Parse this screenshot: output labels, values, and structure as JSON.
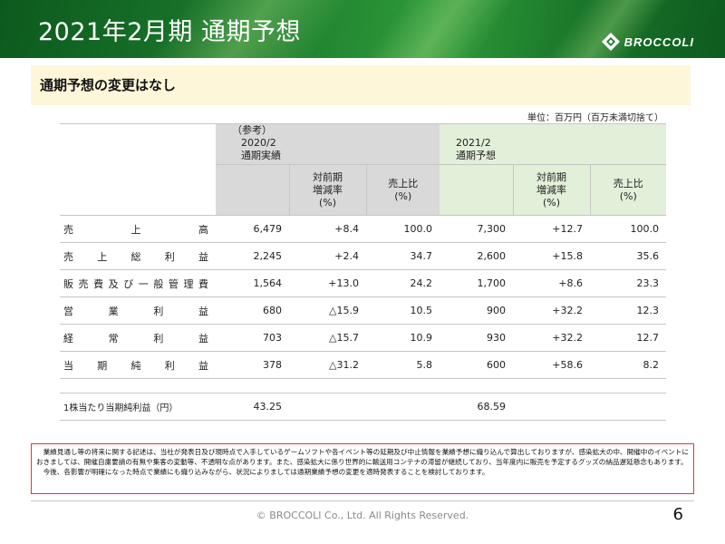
{
  "header": {
    "title": "2021年2月期 通期予想",
    "logo_text": "BROCCOLI",
    "accent": "#1b7a2c"
  },
  "notice": "通期予想の変更はなし",
  "unit_note": "単位：百万円（百万未満切捨て）",
  "table": {
    "group_prev": {
      "line1": "（参考）",
      "line2": "2020/2",
      "line3": "通期実績"
    },
    "group_curr": {
      "line1": "2021/2",
      "line2": "通期予想"
    },
    "sub_yoy": {
      "line1": "対前期",
      "line2": "増減率",
      "line3": "(%)"
    },
    "sub_ratio": {
      "line1": "売上比",
      "line2": "(%)"
    },
    "rows": [
      {
        "label": "売上高",
        "prev": "6,479",
        "prev_yoy": "+8.4",
        "prev_ratio": "100.0",
        "curr": "7,300",
        "curr_yoy": "+12.7",
        "curr_ratio": "100.0"
      },
      {
        "label": "売上総利益",
        "prev": "2,245",
        "prev_yoy": "+2.4",
        "prev_ratio": "34.7",
        "curr": "2,600",
        "curr_yoy": "+15.8",
        "curr_ratio": "35.6"
      },
      {
        "label": "販売費及び一般管理費",
        "prev": "1,564",
        "prev_yoy": "+13.0",
        "prev_ratio": "24.2",
        "curr": "1,700",
        "curr_yoy": "+8.6",
        "curr_ratio": "23.3"
      },
      {
        "label": "営業利益",
        "prev": "680",
        "prev_yoy": "△15.9",
        "prev_ratio": "10.5",
        "curr": "900",
        "curr_yoy": "+32.2",
        "curr_ratio": "12.3"
      },
      {
        "label": "経常利益",
        "prev": "703",
        "prev_yoy": "△15.7",
        "prev_ratio": "10.9",
        "curr": "930",
        "curr_yoy": "+32.2",
        "curr_ratio": "12.7"
      },
      {
        "label": "当期純利益",
        "prev": "378",
        "prev_yoy": "△31.2",
        "prev_ratio": "5.8",
        "curr": "600",
        "curr_yoy": "+58.6",
        "curr_ratio": "8.2"
      }
    ],
    "eps": {
      "label": "1株当たり当期純利益（円）",
      "prev": "43.25",
      "curr": "68.59"
    }
  },
  "disclaimer": {
    "line1": "業績見通し等の将来に関する記述は、当社が発表日及び現時点で入手しているゲームソフトや各イベント等の延期及び中止情報を業績予想に織り込んで算出しておりますが、感染拡大の中、開催中のイベントにおきましては、開催自粛要請の有無や集客の変動等、不透明な点があります。また、感染拡大に係り世界的に輸送用コンテナの滞留が継続しており、当年度内に販売を予定するグッズの納品遅延懸念もあります。",
    "line2": "今後、各影響が明確になった時点で業績にも織り込みながら、状況によりましては通期業績予想の変更を適時発表することを検討しております。",
    "border_color": "#e0363a"
  },
  "footer": {
    "copyright": "© BROCCOLI Co., Ltd. All Rights Reserved.",
    "page_number": "6"
  }
}
